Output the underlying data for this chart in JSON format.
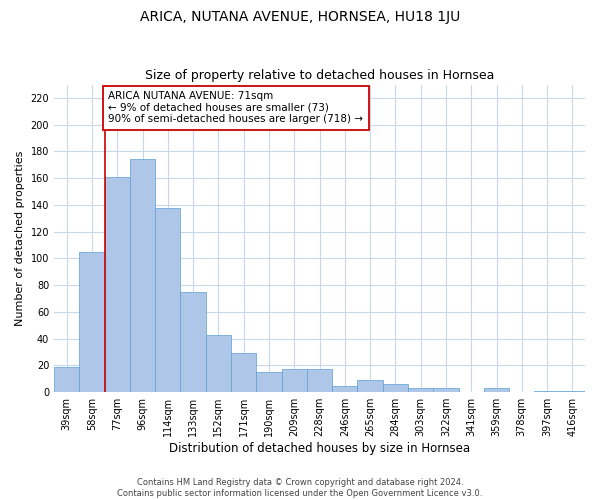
{
  "title": "ARICA, NUTANA AVENUE, HORNSEA, HU18 1JU",
  "subtitle": "Size of property relative to detached houses in Hornsea",
  "xlabel": "Distribution of detached houses by size in Hornsea",
  "ylabel": "Number of detached properties",
  "categories": [
    "39sqm",
    "58sqm",
    "77sqm",
    "96sqm",
    "114sqm",
    "133sqm",
    "152sqm",
    "171sqm",
    "190sqm",
    "209sqm",
    "228sqm",
    "246sqm",
    "265sqm",
    "284sqm",
    "303sqm",
    "322sqm",
    "341sqm",
    "359sqm",
    "378sqm",
    "397sqm",
    "416sqm"
  ],
  "values": [
    19,
    105,
    161,
    174,
    138,
    75,
    43,
    29,
    15,
    17,
    17,
    5,
    9,
    6,
    3,
    3,
    0,
    3,
    0,
    1,
    1
  ],
  "bar_color": "#aec6e8",
  "bar_edge_color": "#5a9fd4",
  "vline_x_index": 2,
  "vline_color": "#cc0000",
  "annotation_text": "ARICA NUTANA AVENUE: 71sqm\n← 9% of detached houses are smaller (73)\n90% of semi-detached houses are larger (718) →",
  "annotation_box_color": "#ffffff",
  "annotation_box_edge": "#cc0000",
  "ylim": [
    0,
    230
  ],
  "yticks": [
    0,
    20,
    40,
    60,
    80,
    100,
    120,
    140,
    160,
    180,
    200,
    220
  ],
  "footer1": "Contains HM Land Registry data © Crown copyright and database right 2024.",
  "footer2": "Contains public sector information licensed under the Open Government Licence v3.0.",
  "bg_color": "#ffffff",
  "grid_color": "#c8d8e8",
  "title_fontsize": 10,
  "subtitle_fontsize": 9,
  "tick_fontsize": 7,
  "ylabel_fontsize": 8,
  "xlabel_fontsize": 8.5,
  "annotation_fontsize": 7.5,
  "footer_fontsize": 6
}
